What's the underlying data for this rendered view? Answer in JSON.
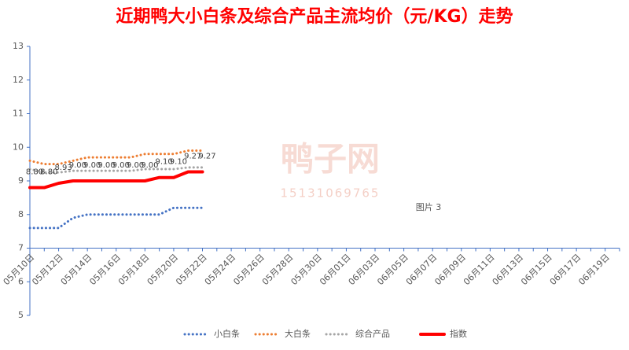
{
  "chart_data": {
    "type": "line",
    "title": "近期鸭大小白条及综合产品主流均价（元/KG）走势",
    "annotations": [
      "鸭子网",
      "15131069765",
      "图片 3"
    ],
    "categories": [
      "05月10日",
      null,
      "05月12日",
      null,
      "05月14日",
      null,
      "05月16日",
      null,
      "05月18日",
      null,
      "05月20日",
      null,
      "05月22日",
      null,
      "05月24日",
      null,
      "05月26日",
      null,
      "05月28日",
      null,
      "05月30日",
      null,
      "06月01日",
      null,
      "06月03日",
      null,
      "06月05日",
      null,
      "06月07日",
      null,
      "06月09日",
      null,
      "06月11日",
      null,
      "06月13日",
      null,
      "06月15日",
      null,
      "06月17日",
      null,
      "06月19日",
      null
    ],
    "ylim": [
      5,
      13
    ],
    "yticks": [
      5,
      6,
      7,
      8,
      9,
      10,
      11,
      12,
      13
    ],
    "x_axis_crosses": 7,
    "series": [
      {
        "name": "小白条",
        "color": "#4472c4",
        "values": [
          7.6,
          7.6,
          7.6,
          7.9,
          8.0,
          8.0,
          8.0,
          8.0,
          8.0,
          8.0,
          8.2,
          8.2,
          8.2,
          null,
          null,
          null,
          null,
          null,
          null,
          null,
          null,
          null,
          null,
          null,
          null,
          null,
          null,
          null,
          null,
          null,
          null,
          null,
          null,
          null,
          null,
          null,
          null,
          null,
          null,
          null,
          null,
          null
        ]
      },
      {
        "name": "大白条",
        "color": "#ed7d31",
        "values": [
          9.6,
          9.5,
          9.5,
          9.6,
          9.7,
          9.7,
          9.7,
          9.7,
          9.8,
          9.8,
          9.8,
          9.9,
          9.9,
          null,
          null,
          null,
          null,
          null,
          null,
          null,
          null,
          null,
          null,
          null,
          null,
          null,
          null,
          null,
          null,
          null,
          null,
          null,
          null,
          null,
          null,
          null,
          null,
          null,
          null,
          null,
          null,
          null
        ]
      },
      {
        "name": "综合产品",
        "color": "#a5a5a5",
        "values": [
          9.35,
          9.25,
          9.25,
          9.3,
          9.3,
          9.3,
          9.3,
          9.3,
          9.35,
          9.35,
          9.35,
          9.4,
          9.4,
          null,
          null,
          null,
          null,
          null,
          null,
          null,
          null,
          null,
          null,
          null,
          null,
          null,
          null,
          null,
          null,
          null,
          null,
          null,
          null,
          null,
          null,
          null,
          null,
          null,
          null,
          null,
          null,
          null
        ]
      },
      {
        "name": "指数",
        "color": "#ff0000",
        "values": [
          8.8,
          8.8,
          8.93,
          9.0,
          9.0,
          9.0,
          9.0,
          9.0,
          9.0,
          9.1,
          9.1,
          9.27,
          9.27,
          null,
          null,
          null,
          null,
          null,
          null,
          null,
          null,
          null,
          null,
          null,
          null,
          null,
          null,
          null,
          null,
          null,
          null,
          null,
          null,
          null,
          null,
          null,
          null,
          null,
          null,
          null,
          null,
          null
        ],
        "value_labels": [
          "8.80",
          "8.80",
          "8.93",
          "9.00",
          "9.00",
          "9.00",
          "9.00",
          "9.00",
          "9.00",
          "9.10",
          "9.10",
          "9.27",
          "9.27",
          null,
          null,
          null,
          null,
          null,
          null,
          null,
          null,
          null,
          null,
          null,
          null,
          null,
          null,
          null,
          null,
          null,
          null,
          null,
          null,
          null,
          null,
          null,
          null,
          null,
          null,
          null,
          null,
          null
        ]
      }
    ]
  }
}
